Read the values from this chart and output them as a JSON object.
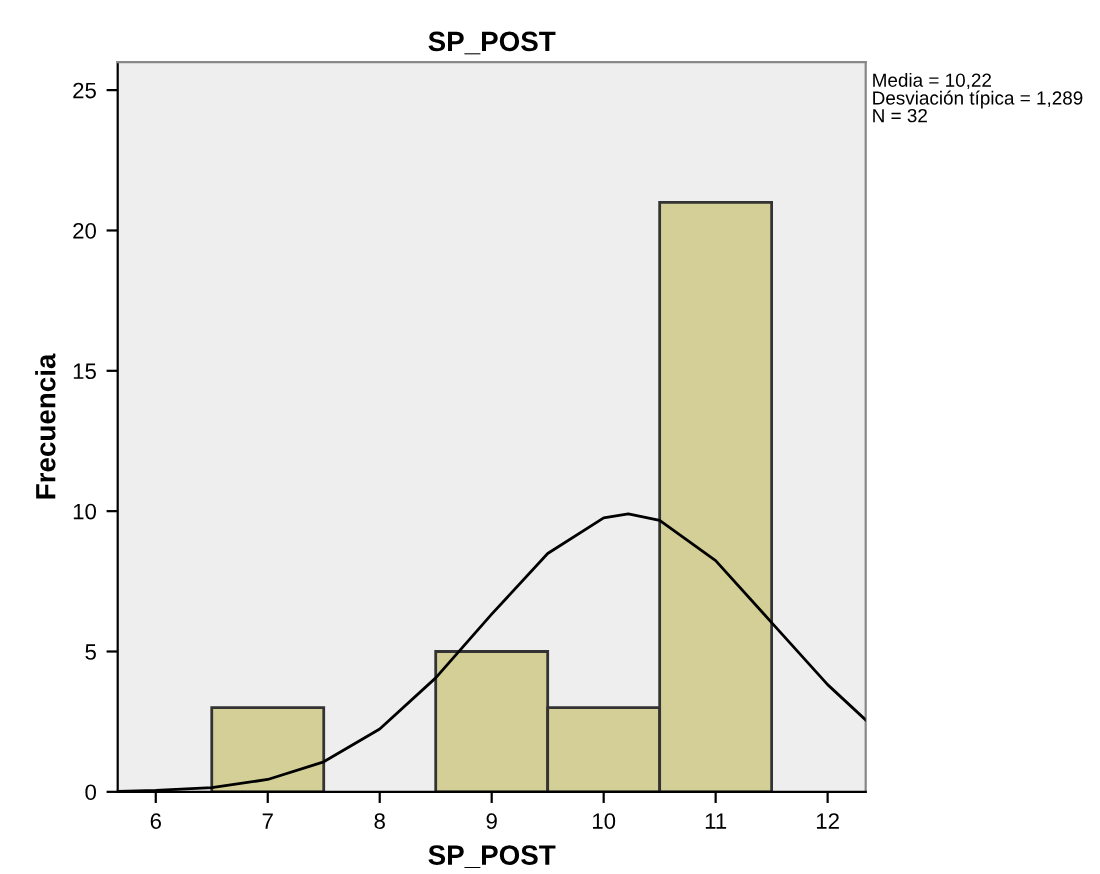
{
  "chart_data": {
    "type": "histogram",
    "title": "SP_POST",
    "xlabel": "SP_POST",
    "ylabel": "Frecuencia",
    "bins": [
      6.5,
      7.5,
      8.5,
      9.5,
      10.5,
      11.5
    ],
    "values": [
      3,
      0,
      5,
      3,
      21
    ],
    "color": "#d3cf96",
    "series": [
      {
        "type": "line",
        "color": "#000000",
        "x": [
          5.66,
          6,
          6.5,
          7,
          7.5,
          8,
          8.5,
          9,
          9.5,
          10,
          10.22,
          10.5,
          11,
          11.5,
          12,
          12.34
        ],
        "values": [
          0.02,
          0.05,
          0.15,
          0.44,
          1.07,
          2.24,
          4.06,
          6.33,
          8.49,
          9.76,
          9.9,
          9.67,
          8.24,
          6.03,
          3.82,
          2.56
        ]
      }
    ],
    "xlim": [
      5.66,
      12.34
    ],
    "xticks": [
      6,
      7,
      8,
      9,
      10,
      11,
      12
    ],
    "ylim": [
      0,
      26
    ],
    "yticks": [
      0,
      5,
      10,
      15,
      20,
      25
    ],
    "annotations": [
      "Media = 10,22",
      "Desviación típica = 1,289",
      "N = 32"
    ]
  }
}
